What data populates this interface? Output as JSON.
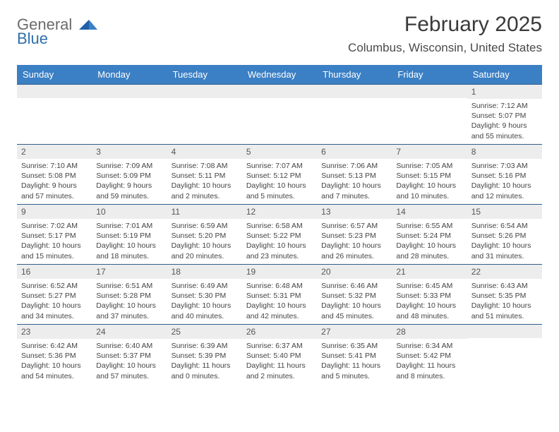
{
  "logo": {
    "word1": "General",
    "word2": "Blue"
  },
  "title": "February 2025",
  "location": "Columbus, Wisconsin, United States",
  "colors": {
    "header_bg": "#3b7fc4",
    "header_fg": "#ffffff",
    "daynum_bg": "#ededed",
    "rule": "#2f5e8a",
    "text": "#444444"
  },
  "day_headers": [
    "Sunday",
    "Monday",
    "Tuesday",
    "Wednesday",
    "Thursday",
    "Friday",
    "Saturday"
  ],
  "weeks": [
    [
      {
        "n": "",
        "sunrise": "",
        "sunset": "",
        "daylight1": "",
        "daylight2": ""
      },
      {
        "n": "",
        "sunrise": "",
        "sunset": "",
        "daylight1": "",
        "daylight2": ""
      },
      {
        "n": "",
        "sunrise": "",
        "sunset": "",
        "daylight1": "",
        "daylight2": ""
      },
      {
        "n": "",
        "sunrise": "",
        "sunset": "",
        "daylight1": "",
        "daylight2": ""
      },
      {
        "n": "",
        "sunrise": "",
        "sunset": "",
        "daylight1": "",
        "daylight2": ""
      },
      {
        "n": "",
        "sunrise": "",
        "sunset": "",
        "daylight1": "",
        "daylight2": ""
      },
      {
        "n": "1",
        "sunrise": "Sunrise: 7:12 AM",
        "sunset": "Sunset: 5:07 PM",
        "daylight1": "Daylight: 9 hours",
        "daylight2": "and 55 minutes."
      }
    ],
    [
      {
        "n": "2",
        "sunrise": "Sunrise: 7:10 AM",
        "sunset": "Sunset: 5:08 PM",
        "daylight1": "Daylight: 9 hours",
        "daylight2": "and 57 minutes."
      },
      {
        "n": "3",
        "sunrise": "Sunrise: 7:09 AM",
        "sunset": "Sunset: 5:09 PM",
        "daylight1": "Daylight: 9 hours",
        "daylight2": "and 59 minutes."
      },
      {
        "n": "4",
        "sunrise": "Sunrise: 7:08 AM",
        "sunset": "Sunset: 5:11 PM",
        "daylight1": "Daylight: 10 hours",
        "daylight2": "and 2 minutes."
      },
      {
        "n": "5",
        "sunrise": "Sunrise: 7:07 AM",
        "sunset": "Sunset: 5:12 PM",
        "daylight1": "Daylight: 10 hours",
        "daylight2": "and 5 minutes."
      },
      {
        "n": "6",
        "sunrise": "Sunrise: 7:06 AM",
        "sunset": "Sunset: 5:13 PM",
        "daylight1": "Daylight: 10 hours",
        "daylight2": "and 7 minutes."
      },
      {
        "n": "7",
        "sunrise": "Sunrise: 7:05 AM",
        "sunset": "Sunset: 5:15 PM",
        "daylight1": "Daylight: 10 hours",
        "daylight2": "and 10 minutes."
      },
      {
        "n": "8",
        "sunrise": "Sunrise: 7:03 AM",
        "sunset": "Sunset: 5:16 PM",
        "daylight1": "Daylight: 10 hours",
        "daylight2": "and 12 minutes."
      }
    ],
    [
      {
        "n": "9",
        "sunrise": "Sunrise: 7:02 AM",
        "sunset": "Sunset: 5:17 PM",
        "daylight1": "Daylight: 10 hours",
        "daylight2": "and 15 minutes."
      },
      {
        "n": "10",
        "sunrise": "Sunrise: 7:01 AM",
        "sunset": "Sunset: 5:19 PM",
        "daylight1": "Daylight: 10 hours",
        "daylight2": "and 18 minutes."
      },
      {
        "n": "11",
        "sunrise": "Sunrise: 6:59 AM",
        "sunset": "Sunset: 5:20 PM",
        "daylight1": "Daylight: 10 hours",
        "daylight2": "and 20 minutes."
      },
      {
        "n": "12",
        "sunrise": "Sunrise: 6:58 AM",
        "sunset": "Sunset: 5:22 PM",
        "daylight1": "Daylight: 10 hours",
        "daylight2": "and 23 minutes."
      },
      {
        "n": "13",
        "sunrise": "Sunrise: 6:57 AM",
        "sunset": "Sunset: 5:23 PM",
        "daylight1": "Daylight: 10 hours",
        "daylight2": "and 26 minutes."
      },
      {
        "n": "14",
        "sunrise": "Sunrise: 6:55 AM",
        "sunset": "Sunset: 5:24 PM",
        "daylight1": "Daylight: 10 hours",
        "daylight2": "and 28 minutes."
      },
      {
        "n": "15",
        "sunrise": "Sunrise: 6:54 AM",
        "sunset": "Sunset: 5:26 PM",
        "daylight1": "Daylight: 10 hours",
        "daylight2": "and 31 minutes."
      }
    ],
    [
      {
        "n": "16",
        "sunrise": "Sunrise: 6:52 AM",
        "sunset": "Sunset: 5:27 PM",
        "daylight1": "Daylight: 10 hours",
        "daylight2": "and 34 minutes."
      },
      {
        "n": "17",
        "sunrise": "Sunrise: 6:51 AM",
        "sunset": "Sunset: 5:28 PM",
        "daylight1": "Daylight: 10 hours",
        "daylight2": "and 37 minutes."
      },
      {
        "n": "18",
        "sunrise": "Sunrise: 6:49 AM",
        "sunset": "Sunset: 5:30 PM",
        "daylight1": "Daylight: 10 hours",
        "daylight2": "and 40 minutes."
      },
      {
        "n": "19",
        "sunrise": "Sunrise: 6:48 AM",
        "sunset": "Sunset: 5:31 PM",
        "daylight1": "Daylight: 10 hours",
        "daylight2": "and 42 minutes."
      },
      {
        "n": "20",
        "sunrise": "Sunrise: 6:46 AM",
        "sunset": "Sunset: 5:32 PM",
        "daylight1": "Daylight: 10 hours",
        "daylight2": "and 45 minutes."
      },
      {
        "n": "21",
        "sunrise": "Sunrise: 6:45 AM",
        "sunset": "Sunset: 5:33 PM",
        "daylight1": "Daylight: 10 hours",
        "daylight2": "and 48 minutes."
      },
      {
        "n": "22",
        "sunrise": "Sunrise: 6:43 AM",
        "sunset": "Sunset: 5:35 PM",
        "daylight1": "Daylight: 10 hours",
        "daylight2": "and 51 minutes."
      }
    ],
    [
      {
        "n": "23",
        "sunrise": "Sunrise: 6:42 AM",
        "sunset": "Sunset: 5:36 PM",
        "daylight1": "Daylight: 10 hours",
        "daylight2": "and 54 minutes."
      },
      {
        "n": "24",
        "sunrise": "Sunrise: 6:40 AM",
        "sunset": "Sunset: 5:37 PM",
        "daylight1": "Daylight: 10 hours",
        "daylight2": "and 57 minutes."
      },
      {
        "n": "25",
        "sunrise": "Sunrise: 6:39 AM",
        "sunset": "Sunset: 5:39 PM",
        "daylight1": "Daylight: 11 hours",
        "daylight2": "and 0 minutes."
      },
      {
        "n": "26",
        "sunrise": "Sunrise: 6:37 AM",
        "sunset": "Sunset: 5:40 PM",
        "daylight1": "Daylight: 11 hours",
        "daylight2": "and 2 minutes."
      },
      {
        "n": "27",
        "sunrise": "Sunrise: 6:35 AM",
        "sunset": "Sunset: 5:41 PM",
        "daylight1": "Daylight: 11 hours",
        "daylight2": "and 5 minutes."
      },
      {
        "n": "28",
        "sunrise": "Sunrise: 6:34 AM",
        "sunset": "Sunset: 5:42 PM",
        "daylight1": "Daylight: 11 hours",
        "daylight2": "and 8 minutes."
      },
      {
        "n": "",
        "sunrise": "",
        "sunset": "",
        "daylight1": "",
        "daylight2": ""
      }
    ]
  ]
}
